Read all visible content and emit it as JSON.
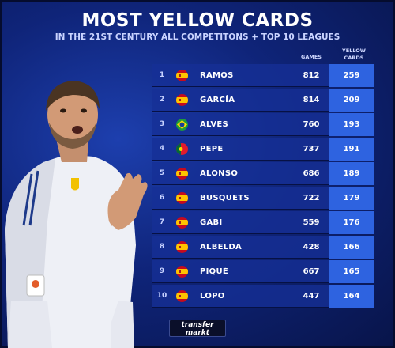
{
  "title": "MOST YELLOW CARDS",
  "subtitle": "IN THE 21ST CENTURY ALL COMPETITONS + TOP 10 LEAGUES",
  "columns": {
    "games": "GAMES",
    "cards": "YELLOW CARDS"
  },
  "rows": [
    {
      "rank": "1",
      "flag": "spain-flag",
      "name": "RAMOS",
      "games": "812",
      "cards": "259"
    },
    {
      "rank": "2",
      "flag": "spain-flag",
      "name": "GARCÍA",
      "games": "814",
      "cards": "209"
    },
    {
      "rank": "3",
      "flag": "brazil-flag",
      "name": "ALVES",
      "games": "760",
      "cards": "193"
    },
    {
      "rank": "4",
      "flag": "portugal-flag",
      "name": "PEPE",
      "games": "737",
      "cards": "191"
    },
    {
      "rank": "5",
      "flag": "spain-flag",
      "name": "ALONSO",
      "games": "686",
      "cards": "189"
    },
    {
      "rank": "6",
      "flag": "spain-flag",
      "name": "BUSQUETS",
      "games": "722",
      "cards": "179"
    },
    {
      "rank": "7",
      "flag": "spain-flag",
      "name": "GABI",
      "games": "559",
      "cards": "176"
    },
    {
      "rank": "8",
      "flag": "spain-flag",
      "name": "ALBELDA",
      "games": "428",
      "cards": "166"
    },
    {
      "rank": "9",
      "flag": "spain-flag",
      "name": "PIQUÉ",
      "games": "667",
      "cards": "165"
    },
    {
      "rank": "10",
      "flag": "spain-flag",
      "name": "LOPO",
      "games": "447",
      "cards": "164"
    }
  ],
  "logo": {
    "line1": "transfer",
    "line2": "markt"
  },
  "colors": {
    "background": "#0f2479",
    "row": "#16309a",
    "highlight": "#2e63e0",
    "accent": "#f2c100"
  }
}
